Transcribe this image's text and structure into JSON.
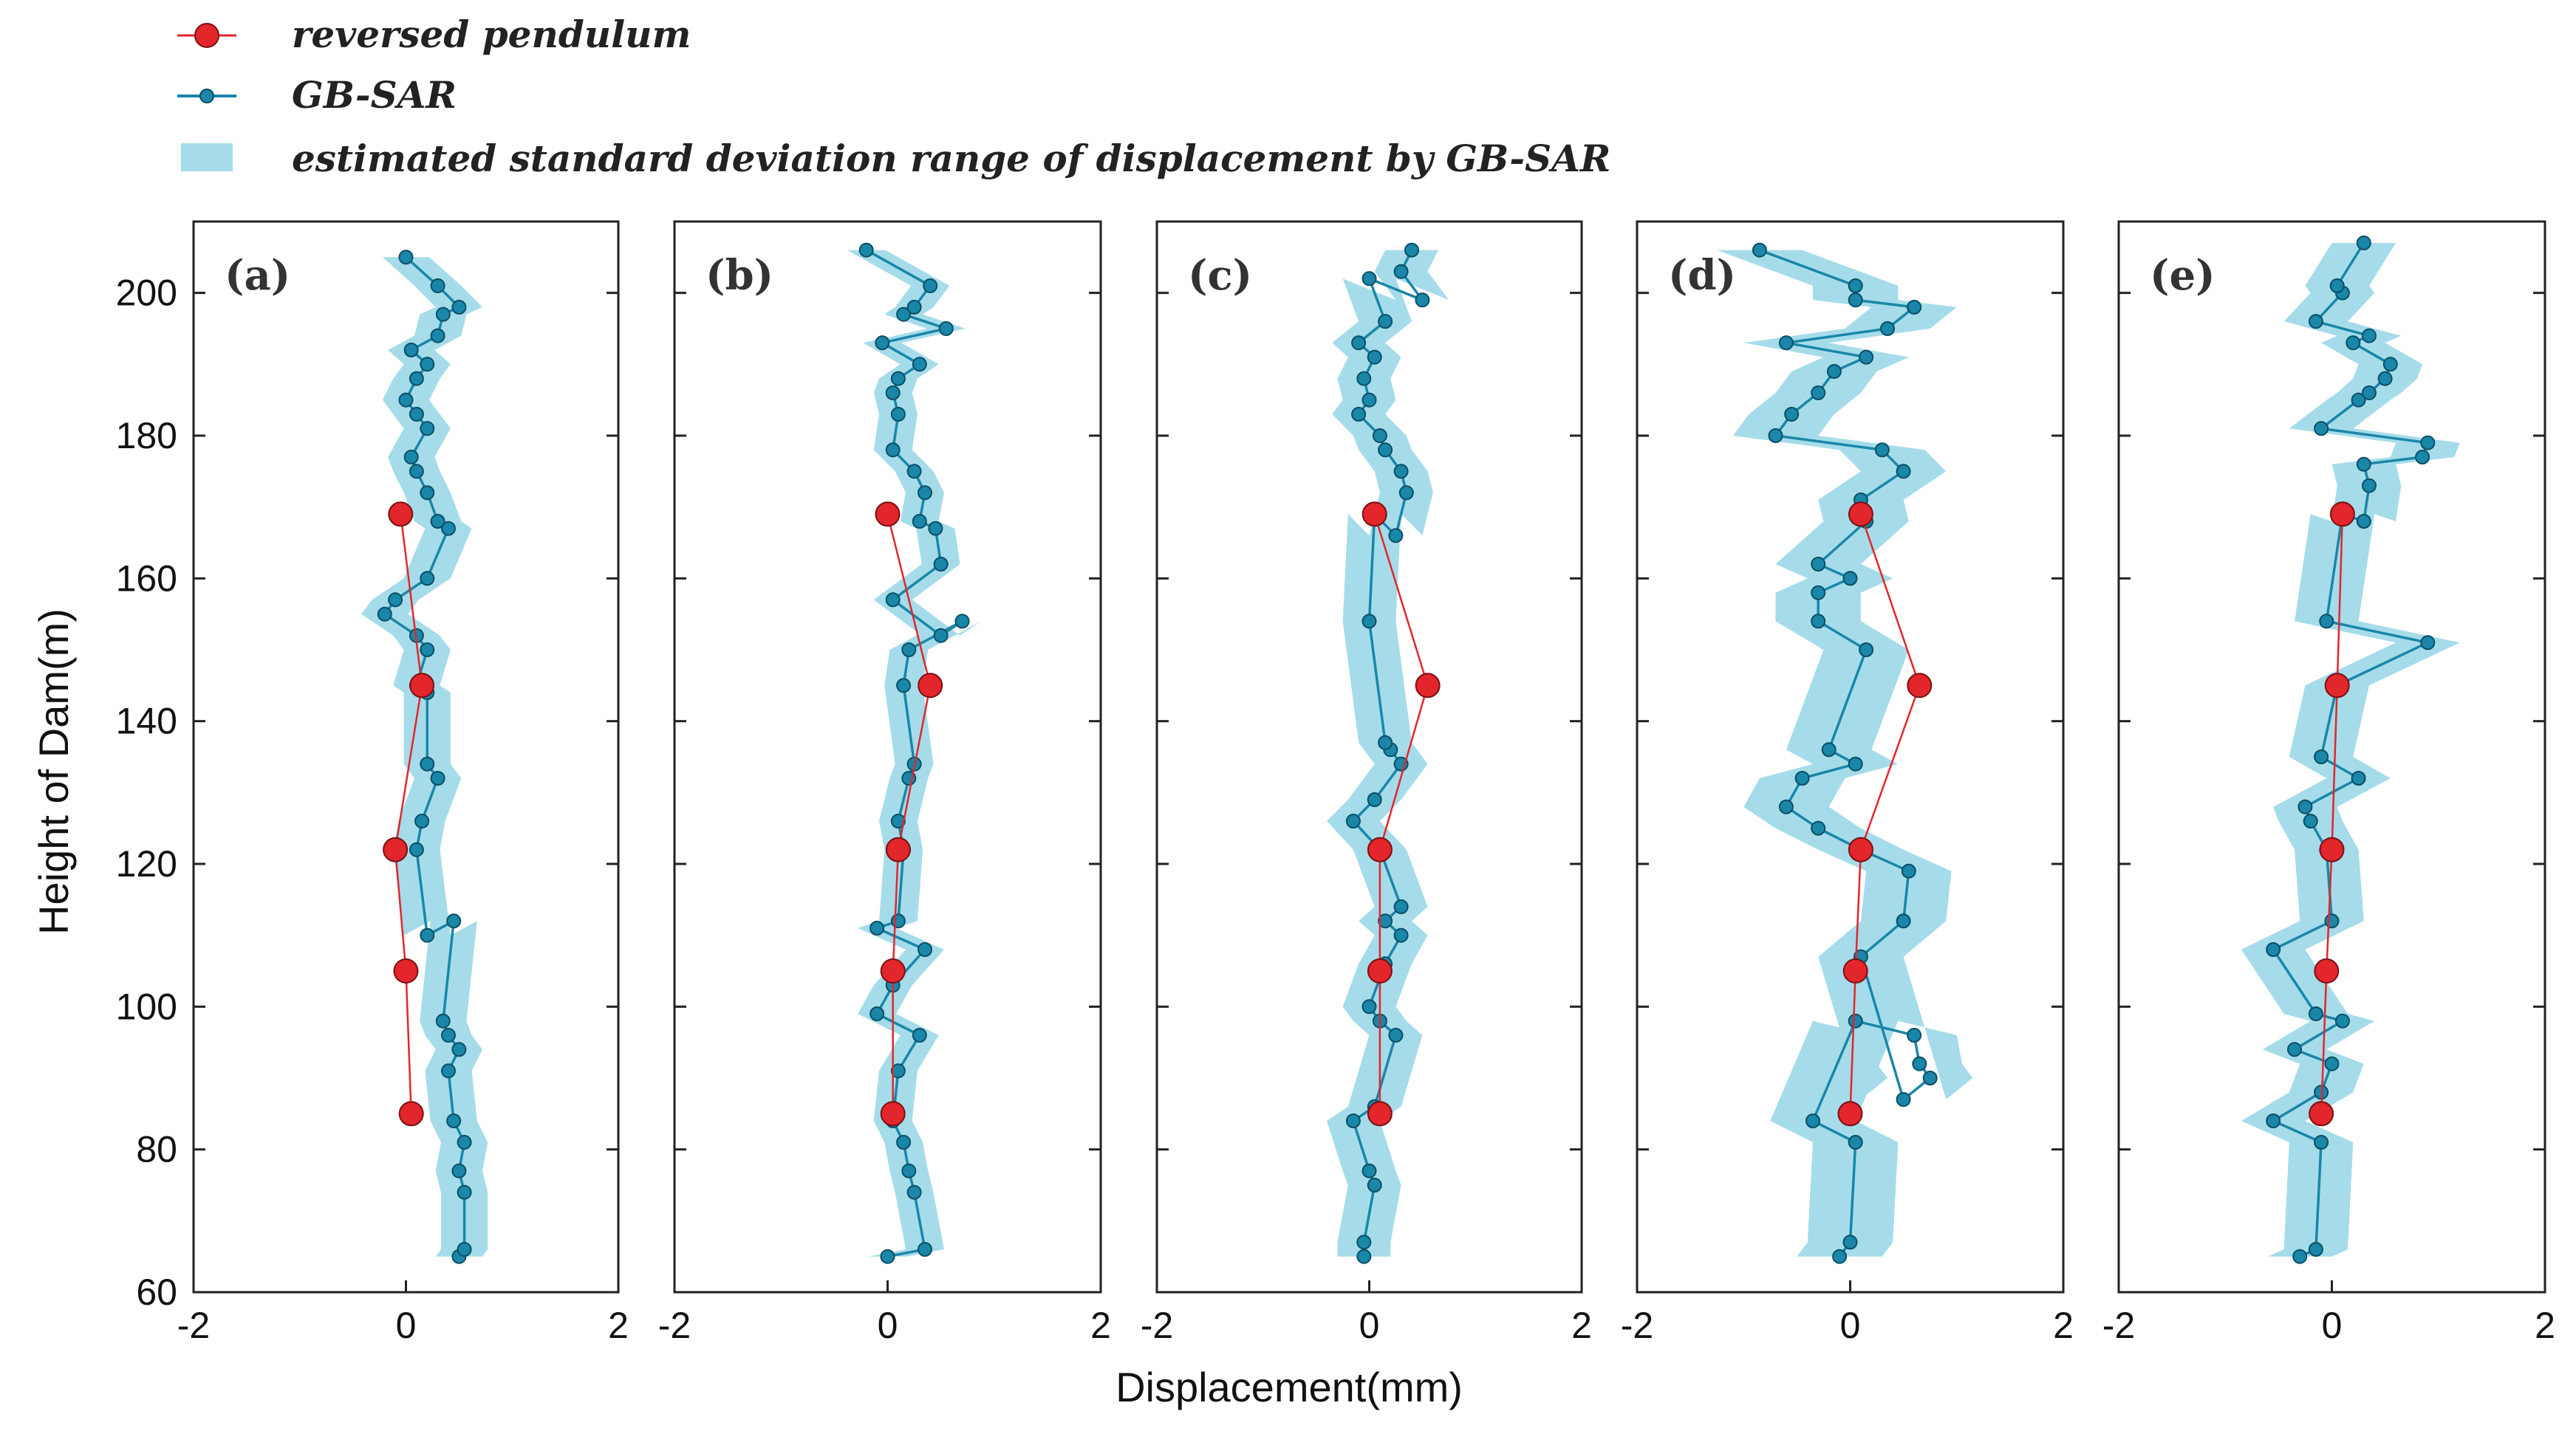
{
  "legend": {
    "pendulum_label": "reversed pendulum",
    "gbsar_label": "GB-SAR",
    "band_label": "estimated standard deviation range of  displacement by GB-SAR"
  },
  "colors": {
    "pendulum": "#e2262c",
    "pendulum_edge": "#7a1014",
    "gbsar": "#1a86a8",
    "gbsar_edge": "#0b4f66",
    "band": "#a6dcea",
    "axis": "#222222"
  },
  "chart_data": [
    {
      "type": "line",
      "panel_label": "(a)",
      "xlabel": "Displacement(mm)",
      "ylabel": "Height of Dam(m)",
      "xlim": [
        -2,
        2
      ],
      "ylim": [
        60,
        210
      ],
      "x_ticks": [
        "-2",
        "0",
        "2"
      ],
      "y_ticks": [
        "60",
        "80",
        "100",
        "120",
        "140",
        "160",
        "180",
        "200"
      ],
      "pendulum": [
        [
          -0.05,
          169
        ],
        [
          0.15,
          145
        ],
        [
          -0.1,
          122
        ],
        [
          0.0,
          105
        ],
        [
          0.05,
          85
        ]
      ],
      "gbsar": [
        [
          0.5,
          65
        ],
        [
          0.55,
          66
        ],
        [
          0.55,
          74
        ],
        [
          0.5,
          77
        ],
        [
          0.55,
          81
        ],
        [
          0.45,
          84
        ],
        [
          0.4,
          91
        ],
        [
          0.5,
          94
        ],
        [
          0.4,
          96
        ],
        [
          0.35,
          98
        ],
        [
          0.45,
          112
        ],
        [
          0.2,
          110
        ],
        [
          0.1,
          122
        ],
        [
          0.15,
          126
        ],
        [
          0.3,
          132
        ],
        [
          0.2,
          134
        ],
        [
          0.2,
          144
        ],
        [
          0.1,
          145
        ],
        [
          0.2,
          150
        ],
        [
          0.1,
          152
        ],
        [
          -0.2,
          155
        ],
        [
          -0.1,
          157
        ],
        [
          0.2,
          160
        ],
        [
          0.4,
          167
        ],
        [
          0.3,
          168
        ],
        [
          0.2,
          172
        ],
        [
          0.1,
          175
        ],
        [
          0.05,
          177
        ],
        [
          0.2,
          181
        ],
        [
          0.1,
          183
        ],
        [
          0.0,
          185
        ],
        [
          0.1,
          188
        ],
        [
          0.2,
          190
        ],
        [
          0.05,
          192
        ],
        [
          0.3,
          194
        ],
        [
          0.35,
          197
        ],
        [
          0.5,
          198
        ],
        [
          0.3,
          201
        ],
        [
          0.0,
          205
        ]
      ],
      "band_width": 0.22
    },
    {
      "type": "line",
      "panel_label": "(b)",
      "xlabel": "",
      "ylabel": "",
      "xlim": [
        -2,
        2
      ],
      "ylim": [
        60,
        210
      ],
      "x_ticks": [
        "-2",
        "0",
        "2"
      ],
      "y_ticks": [],
      "pendulum": [
        [
          0.0,
          169
        ],
        [
          0.4,
          145
        ],
        [
          0.1,
          122
        ],
        [
          0.05,
          105
        ],
        [
          0.05,
          85
        ]
      ],
      "gbsar": [
        [
          0.0,
          65
        ],
        [
          0.35,
          66
        ],
        [
          0.25,
          74
        ],
        [
          0.2,
          77
        ],
        [
          0.15,
          81
        ],
        [
          0.05,
          84
        ],
        [
          0.1,
          91
        ],
        [
          0.3,
          96
        ],
        [
          -0.1,
          99
        ],
        [
          0.05,
          103
        ],
        [
          0.35,
          108
        ],
        [
          -0.1,
          111
        ],
        [
          0.1,
          112
        ],
        [
          0.15,
          122
        ],
        [
          0.1,
          126
        ],
        [
          0.2,
          132
        ],
        [
          0.25,
          134
        ],
        [
          0.15,
          145
        ],
        [
          0.2,
          150
        ],
        [
          0.7,
          154
        ],
        [
          0.5,
          152
        ],
        [
          0.05,
          157
        ],
        [
          0.5,
          162
        ],
        [
          0.45,
          167
        ],
        [
          0.3,
          168
        ],
        [
          0.35,
          172
        ],
        [
          0.25,
          175
        ],
        [
          0.05,
          178
        ],
        [
          0.1,
          183
        ],
        [
          0.05,
          186
        ],
        [
          0.1,
          188
        ],
        [
          0.3,
          190
        ],
        [
          -0.05,
          193
        ],
        [
          0.55,
          195
        ],
        [
          0.15,
          197
        ],
        [
          0.25,
          198
        ],
        [
          0.4,
          201
        ],
        [
          -0.2,
          206
        ]
      ],
      "band_width": 0.18
    },
    {
      "type": "line",
      "panel_label": "(c)",
      "xlabel": "",
      "ylabel": "",
      "xlim": [
        -2,
        2
      ],
      "ylim": [
        60,
        210
      ],
      "x_ticks": [
        "-2",
        "0",
        "2"
      ],
      "y_ticks": [],
      "pendulum": [
        [
          0.05,
          169
        ],
        [
          0.55,
          145
        ],
        [
          0.1,
          122
        ],
        [
          0.1,
          105
        ],
        [
          0.1,
          85
        ]
      ],
      "gbsar": [
        [
          -0.05,
          65
        ],
        [
          -0.05,
          67
        ],
        [
          0.05,
          75
        ],
        [
          0.0,
          77
        ],
        [
          -0.15,
          84
        ],
        [
          0.05,
          86
        ],
        [
          0.25,
          96
        ],
        [
          0.1,
          98
        ],
        [
          0.0,
          100
        ],
        [
          0.15,
          106
        ],
        [
          0.3,
          110
        ],
        [
          0.15,
          112
        ],
        [
          0.3,
          114
        ],
        [
          0.1,
          122
        ],
        [
          -0.15,
          126
        ],
        [
          0.05,
          129
        ],
        [
          0.3,
          134
        ],
        [
          0.2,
          136
        ],
        [
          0.15,
          137
        ],
        [
          0.0,
          154
        ],
        [
          0.05,
          169
        ],
        [
          0.25,
          166
        ],
        [
          0.35,
          172
        ],
        [
          0.3,
          175
        ],
        [
          0.15,
          178
        ],
        [
          0.1,
          180
        ],
        [
          -0.1,
          183
        ],
        [
          0.0,
          185
        ],
        [
          -0.05,
          188
        ],
        [
          0.05,
          191
        ],
        [
          -0.1,
          193
        ],
        [
          0.15,
          196
        ],
        [
          0.0,
          202
        ],
        [
          0.5,
          199
        ],
        [
          0.3,
          203
        ],
        [
          0.4,
          206
        ]
      ],
      "band_width": 0.25
    },
    {
      "type": "line",
      "panel_label": "(d)",
      "xlabel": "",
      "ylabel": "",
      "xlim": [
        -2,
        2
      ],
      "ylim": [
        60,
        210
      ],
      "x_ticks": [
        "-2",
        "0",
        "2"
      ],
      "y_ticks": [],
      "pendulum": [
        [
          0.1,
          169
        ],
        [
          0.65,
          145
        ],
        [
          0.1,
          122
        ],
        [
          0.05,
          105
        ],
        [
          0.0,
          85
        ]
      ],
      "gbsar": [
        [
          -0.1,
          65
        ],
        [
          0.0,
          67
        ],
        [
          0.05,
          81
        ],
        [
          -0.35,
          84
        ],
        [
          0.05,
          98
        ],
        [
          0.6,
          96
        ],
        [
          0.65,
          92
        ],
        [
          0.75,
          90
        ],
        [
          0.5,
          87
        ],
        [
          0.1,
          107
        ],
        [
          0.5,
          112
        ],
        [
          0.55,
          119
        ],
        [
          0.1,
          122
        ],
        [
          -0.3,
          125
        ],
        [
          -0.6,
          128
        ],
        [
          -0.45,
          132
        ],
        [
          0.05,
          134
        ],
        [
          -0.2,
          136
        ],
        [
          0.15,
          150
        ],
        [
          -0.3,
          154
        ],
        [
          -0.3,
          158
        ],
        [
          0.0,
          160
        ],
        [
          -0.3,
          162
        ],
        [
          0.15,
          168
        ],
        [
          0.1,
          171
        ],
        [
          0.5,
          175
        ],
        [
          0.3,
          178
        ],
        [
          -0.7,
          180
        ],
        [
          -0.55,
          183
        ],
        [
          -0.3,
          186
        ],
        [
          -0.15,
          189
        ],
        [
          0.15,
          191
        ],
        [
          -0.6,
          193
        ],
        [
          0.35,
          195
        ],
        [
          0.6,
          198
        ],
        [
          0.05,
          199
        ],
        [
          0.05,
          201
        ],
        [
          -0.85,
          206
        ]
      ],
      "band_width": 0.4
    },
    {
      "type": "line",
      "panel_label": "(e)",
      "xlabel": "",
      "ylabel": "",
      "xlim": [
        -2,
        2
      ],
      "ylim": [
        60,
        210
      ],
      "x_ticks": [
        "-2",
        "0",
        "2"
      ],
      "y_ticks": [],
      "pendulum": [
        [
          0.1,
          169
        ],
        [
          0.05,
          145
        ],
        [
          0.0,
          122
        ],
        [
          -0.05,
          105
        ],
        [
          -0.1,
          85
        ]
      ],
      "gbsar": [
        [
          -0.3,
          65
        ],
        [
          -0.15,
          66
        ],
        [
          -0.1,
          81
        ],
        [
          -0.55,
          84
        ],
        [
          -0.1,
          88
        ],
        [
          0.0,
          92
        ],
        [
          -0.35,
          94
        ],
        [
          0.1,
          98
        ],
        [
          -0.15,
          99
        ],
        [
          -0.55,
          108
        ],
        [
          0.0,
          112
        ],
        [
          -0.05,
          122
        ],
        [
          -0.2,
          126
        ],
        [
          -0.25,
          128
        ],
        [
          0.25,
          132
        ],
        [
          -0.1,
          135
        ],
        [
          0.05,
          145
        ],
        [
          0.9,
          151
        ],
        [
          -0.05,
          154
        ],
        [
          0.1,
          169
        ],
        [
          0.3,
          168
        ],
        [
          0.35,
          173
        ],
        [
          0.3,
          176
        ],
        [
          0.85,
          177
        ],
        [
          0.9,
          179
        ],
        [
          -0.1,
          181
        ],
        [
          0.25,
          185
        ],
        [
          0.35,
          186
        ],
        [
          0.5,
          188
        ],
        [
          0.55,
          190
        ],
        [
          0.2,
          193
        ],
        [
          0.35,
          194
        ],
        [
          -0.15,
          196
        ],
        [
          0.1,
          200
        ],
        [
          0.05,
          201
        ],
        [
          0.3,
          207
        ]
      ],
      "band_width": 0.3
    }
  ]
}
